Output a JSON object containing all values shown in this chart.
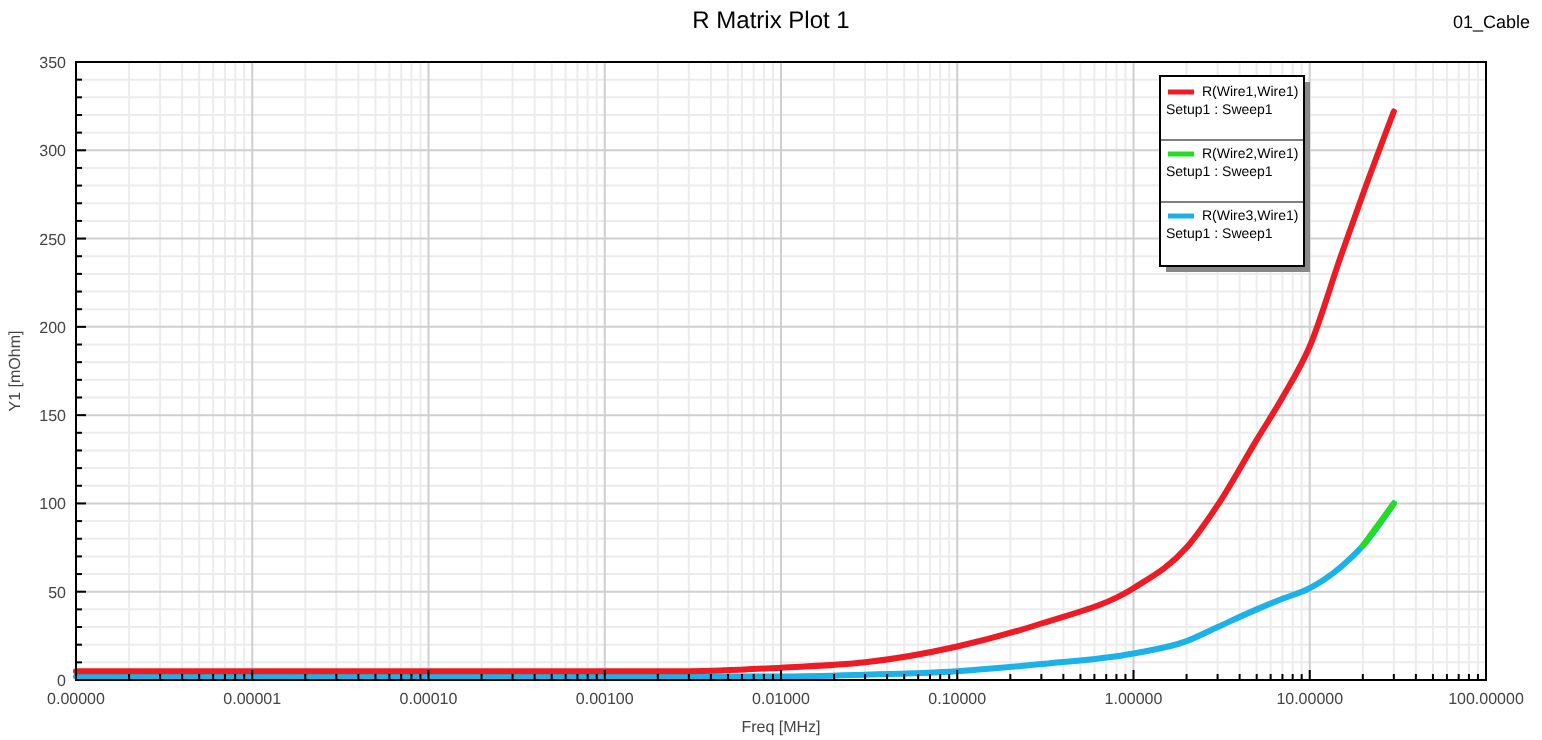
{
  "chart_data": {
    "type": "line",
    "title": "R Matrix Plot 1",
    "xlabel": "Freq [MHz]",
    "ylabel": "Y1 [mOhm]",
    "annotations": [
      "01_Cable"
    ],
    "log": "x",
    "grid": true,
    "legend": "top right",
    "marker": "none",
    "line_style": "solid",
    "x": [
      1e-06,
      1e-05,
      0.0001,
      0.001,
      0.003,
      0.01,
      0.03,
      0.1,
      0.3,
      1,
      2,
      3,
      5,
      7,
      10,
      15,
      20,
      30
    ],
    "xlim": [
      1e-06,
      100
    ],
    "xticks": [
      {
        "value": 1e-06,
        "label": "0.00000"
      },
      {
        "value": 1e-05,
        "label": "0.00001"
      },
      {
        "value": 0.0001,
        "label": "0.00010"
      },
      {
        "value": 0.001,
        "label": "0.00100"
      },
      {
        "value": 0.01,
        "label": "0.01000"
      },
      {
        "value": 0.1,
        "label": "0.10000"
      },
      {
        "value": 1,
        "label": "1.00000"
      },
      {
        "value": 10,
        "label": "10.00000"
      },
      {
        "value": 100,
        "label": "100.00000"
      }
    ],
    "ylim": [
      0,
      350
    ],
    "yticks": [
      0,
      50,
      100,
      150,
      200,
      250,
      300,
      350
    ],
    "series": [
      {
        "name": "R(Wire1,Wire1)\nSetup1 : Sweep1",
        "color": "#ed1c24",
        "values": [
          5,
          5,
          5,
          5,
          5,
          7,
          10,
          19,
          32,
          52,
          75,
          99,
          136,
          160,
          189,
          240,
          275,
          322
        ]
      },
      {
        "name": "R(Wire2,Wire1)\nSetup1 : Sweep1",
        "color": "#22dd22",
        "values": [
          null,
          null,
          null,
          null,
          null,
          null,
          null,
          null,
          null,
          null,
          null,
          null,
          null,
          null,
          null,
          null,
          76,
          100
        ]
      },
      {
        "name": "R(Wire3,Wire1)\nSetup1 : Sweep1",
        "color": "#1ab2e8",
        "values": [
          2,
          2,
          2,
          2,
          2,
          2,
          3,
          5,
          9,
          15,
          22,
          30,
          40,
          46,
          52,
          64,
          76,
          100
        ]
      }
    ]
  }
}
